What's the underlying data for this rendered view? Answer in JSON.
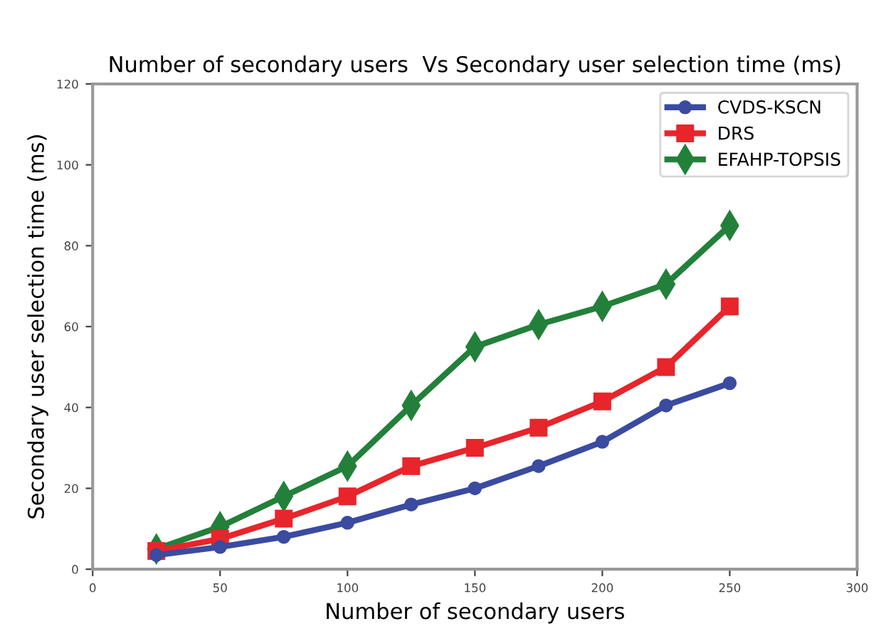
{
  "chart_data": {
    "type": "line",
    "title": "Number of secondary users  Vs Secondary user selection time (ms)",
    "xlabel": "Number of secondary users",
    "ylabel": "Secondary user selection time (ms)",
    "x": [
      25,
      50,
      75,
      100,
      125,
      150,
      175,
      200,
      225,
      250
    ],
    "series": [
      {
        "name": "CVDS-KSCN",
        "color": "#3a4ba0",
        "marker": "circle",
        "values": [
          3.5,
          5.5,
          8,
          11.5,
          16,
          20,
          25.5,
          31.5,
          40.5,
          46
        ]
      },
      {
        "name": "DRS",
        "color": "#e8252b",
        "marker": "square",
        "values": [
          4.5,
          7.5,
          12.5,
          18,
          25.5,
          30,
          35,
          41.5,
          50,
          65
        ]
      },
      {
        "name": "EFAHP-TOPSIS",
        "color": "#23803a",
        "marker": "diamond",
        "values": [
          5,
          10.5,
          18,
          25.5,
          40.5,
          55,
          60.5,
          65,
          70.5,
          85
        ]
      }
    ],
    "xlim": [
      0,
      300
    ],
    "xticks": [
      0,
      50,
      100,
      150,
      200,
      250,
      300
    ],
    "ylim": [
      0,
      120
    ],
    "yticks": [
      0,
      20,
      40,
      60,
      80,
      100,
      120
    ],
    "grid": false,
    "legend": "top right",
    "line_style": "solid"
  }
}
